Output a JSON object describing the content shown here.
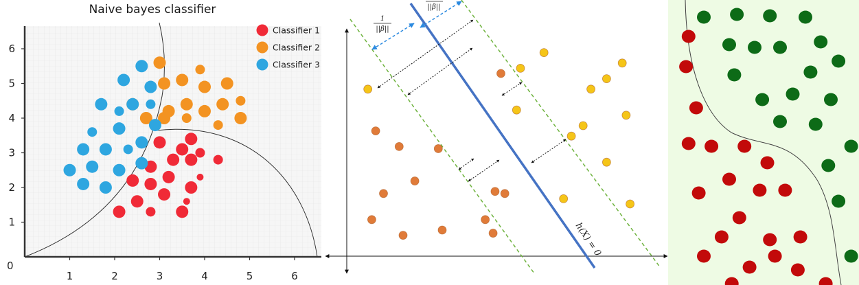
{
  "chart_data": [
    {
      "type": "scatter",
      "title": "Naive bayes classifier",
      "xlim": [
        0,
        6.6
      ],
      "ylim": [
        0,
        6.6
      ],
      "x_ticks": [
        "1",
        "2",
        "3",
        "4",
        "5",
        "6"
      ],
      "y_ticks": [
        "1",
        "2",
        "3",
        "4",
        "5",
        "6"
      ],
      "origin_label": "0",
      "grid": true,
      "legend_position": "top-right",
      "series": [
        {
          "name": "Classifier 1",
          "color": "#f02a37",
          "points": [
            [
              2.1,
              1.3,
              2
            ],
            [
              2.5,
              1.6,
              2
            ],
            [
              2.8,
              1.3,
              1
            ],
            [
              3.1,
              1.8,
              2
            ],
            [
              3.5,
              1.3,
              2
            ],
            [
              3.6,
              1.6,
              0
            ],
            [
              2.4,
              2.2,
              2
            ],
            [
              2.8,
              2.1,
              2
            ],
            [
              3.2,
              2.3,
              2
            ],
            [
              3.7,
              2.0,
              2
            ],
            [
              3.9,
              2.3,
              0
            ],
            [
              2.8,
              2.6,
              2
            ],
            [
              3.3,
              2.8,
              2
            ],
            [
              3.7,
              2.8,
              2
            ],
            [
              4.3,
              2.8,
              1
            ],
            [
              3.0,
              3.3,
              2
            ],
            [
              3.5,
              3.1,
              2
            ],
            [
              3.9,
              3.0,
              1
            ],
            [
              3.7,
              3.4,
              2
            ]
          ]
        },
        {
          "name": "Classifier 2",
          "color": "#f39322",
          "points": [
            [
              2.4,
              4.4,
              2
            ],
            [
              2.7,
              4.0,
              2
            ],
            [
              3.1,
              4.0,
              2
            ],
            [
              3.2,
              4.2,
              2
            ],
            [
              3.6,
              4.0,
              1
            ],
            [
              3.6,
              4.4,
              2
            ],
            [
              4.0,
              4.2,
              2
            ],
            [
              4.3,
              3.8,
              1
            ],
            [
              4.4,
              4.4,
              2
            ],
            [
              4.8,
              4.0,
              2
            ],
            [
              4.8,
              4.5,
              1
            ],
            [
              3.1,
              5.0,
              2
            ],
            [
              3.5,
              5.1,
              2
            ],
            [
              4.0,
              4.9,
              2
            ],
            [
              4.5,
              5.0,
              2
            ],
            [
              3.0,
              5.6,
              2
            ],
            [
              3.9,
              5.4,
              1
            ]
          ]
        },
        {
          "name": "Classifier 3",
          "color": "#2ea6e0",
          "points": [
            [
              1.0,
              2.5,
              2
            ],
            [
              1.3,
              2.1,
              2
            ],
            [
              1.5,
              2.6,
              2
            ],
            [
              1.8,
              2.0,
              2
            ],
            [
              2.1,
              2.5,
              2
            ],
            [
              2.6,
              2.7,
              2
            ],
            [
              1.3,
              3.1,
              2
            ],
            [
              1.8,
              3.1,
              2
            ],
            [
              2.3,
              3.1,
              1
            ],
            [
              2.6,
              3.3,
              2
            ],
            [
              1.5,
              3.6,
              1
            ],
            [
              2.1,
              3.7,
              2
            ],
            [
              2.9,
              3.8,
              2
            ],
            [
              1.7,
              4.4,
              2
            ],
            [
              2.1,
              4.2,
              1
            ],
            [
              2.4,
              4.4,
              2
            ],
            [
              2.8,
              4.4,
              1
            ],
            [
              2.8,
              4.9,
              2
            ],
            [
              2.2,
              5.1,
              2
            ],
            [
              2.6,
              5.5,
              2
            ]
          ]
        }
      ]
    },
    {
      "type": "scatter",
      "grid": false,
      "hyperplane_label": "h(X) = 0",
      "margin_label_numerator": "1",
      "margin_label_denominator": "||β||",
      "margin_label_top": "||β||",
      "series": [
        {
          "color": "#e07b39",
          "points": [
            [
              0.2,
              0.35
            ],
            [
              1.0,
              0.2
            ],
            [
              2.0,
              0.25
            ],
            [
              3.1,
              0.35
            ],
            [
              3.3,
              0.22
            ],
            [
              0.5,
              0.6
            ],
            [
              1.3,
              0.72
            ],
            [
              3.35,
              0.62
            ],
            [
              3.6,
              0.6
            ],
            [
              0.9,
              1.05
            ],
            [
              1.9,
              1.03
            ],
            [
              3.5,
              1.75
            ],
            [
              0.3,
              1.2
            ]
          ]
        },
        {
          "color": "#f5c518",
          "points": [
            [
              0.1,
              1.6
            ],
            [
              3.9,
              1.4
            ],
            [
              4.0,
              1.8
            ],
            [
              4.6,
              1.95
            ],
            [
              5.3,
              1.15
            ],
            [
              5.6,
              1.25
            ],
            [
              5.8,
              1.6
            ],
            [
              6.2,
              1.7
            ],
            [
              6.7,
              1.35
            ],
            [
              6.6,
              1.85
            ],
            [
              5.1,
              0.55
            ],
            [
              6.2,
              0.9
            ],
            [
              6.8,
              0.5
            ]
          ]
        }
      ]
    },
    {
      "type": "scatter",
      "grid": false,
      "background": "#eefbe4",
      "series": [
        {
          "color": "#0d6b17",
          "points": [
            [
              1.0,
              9.7
            ],
            [
              2.3,
              9.8
            ],
            [
              3.6,
              9.75
            ],
            [
              5.0,
              9.7
            ],
            [
              2.0,
              8.7
            ],
            [
              3.0,
              8.6
            ],
            [
              4.0,
              8.6
            ],
            [
              5.6,
              8.8
            ],
            [
              6.3,
              8.1
            ],
            [
              2.2,
              7.6
            ],
            [
              5.2,
              7.7
            ],
            [
              3.3,
              6.7
            ],
            [
              4.5,
              6.9
            ],
            [
              6.0,
              6.7
            ],
            [
              4.0,
              5.9
            ],
            [
              5.4,
              5.8
            ],
            [
              6.8,
              5.0
            ],
            [
              5.9,
              4.3
            ],
            [
              6.3,
              3.0
            ],
            [
              6.8,
              1.0
            ]
          ]
        },
        {
          "color": "#c20a0a",
          "points": [
            [
              0.4,
              9.0
            ],
            [
              0.3,
              7.9
            ],
            [
              0.7,
              6.4
            ],
            [
              0.4,
              5.1
            ],
            [
              1.3,
              5.0
            ],
            [
              2.6,
              5.0
            ],
            [
              3.5,
              4.4
            ],
            [
              2.0,
              3.8
            ],
            [
              3.2,
              3.4
            ],
            [
              4.2,
              3.4
            ],
            [
              0.8,
              3.3
            ],
            [
              2.4,
              2.4
            ],
            [
              1.7,
              1.7
            ],
            [
              3.6,
              1.6
            ],
            [
              4.8,
              1.7
            ],
            [
              1.0,
              1.0
            ],
            [
              3.8,
              1.0
            ],
            [
              2.8,
              0.6
            ],
            [
              4.7,
              0.5
            ],
            [
              2.1,
              0.0
            ],
            [
              5.8,
              0.0
            ]
          ]
        }
      ]
    }
  ]
}
